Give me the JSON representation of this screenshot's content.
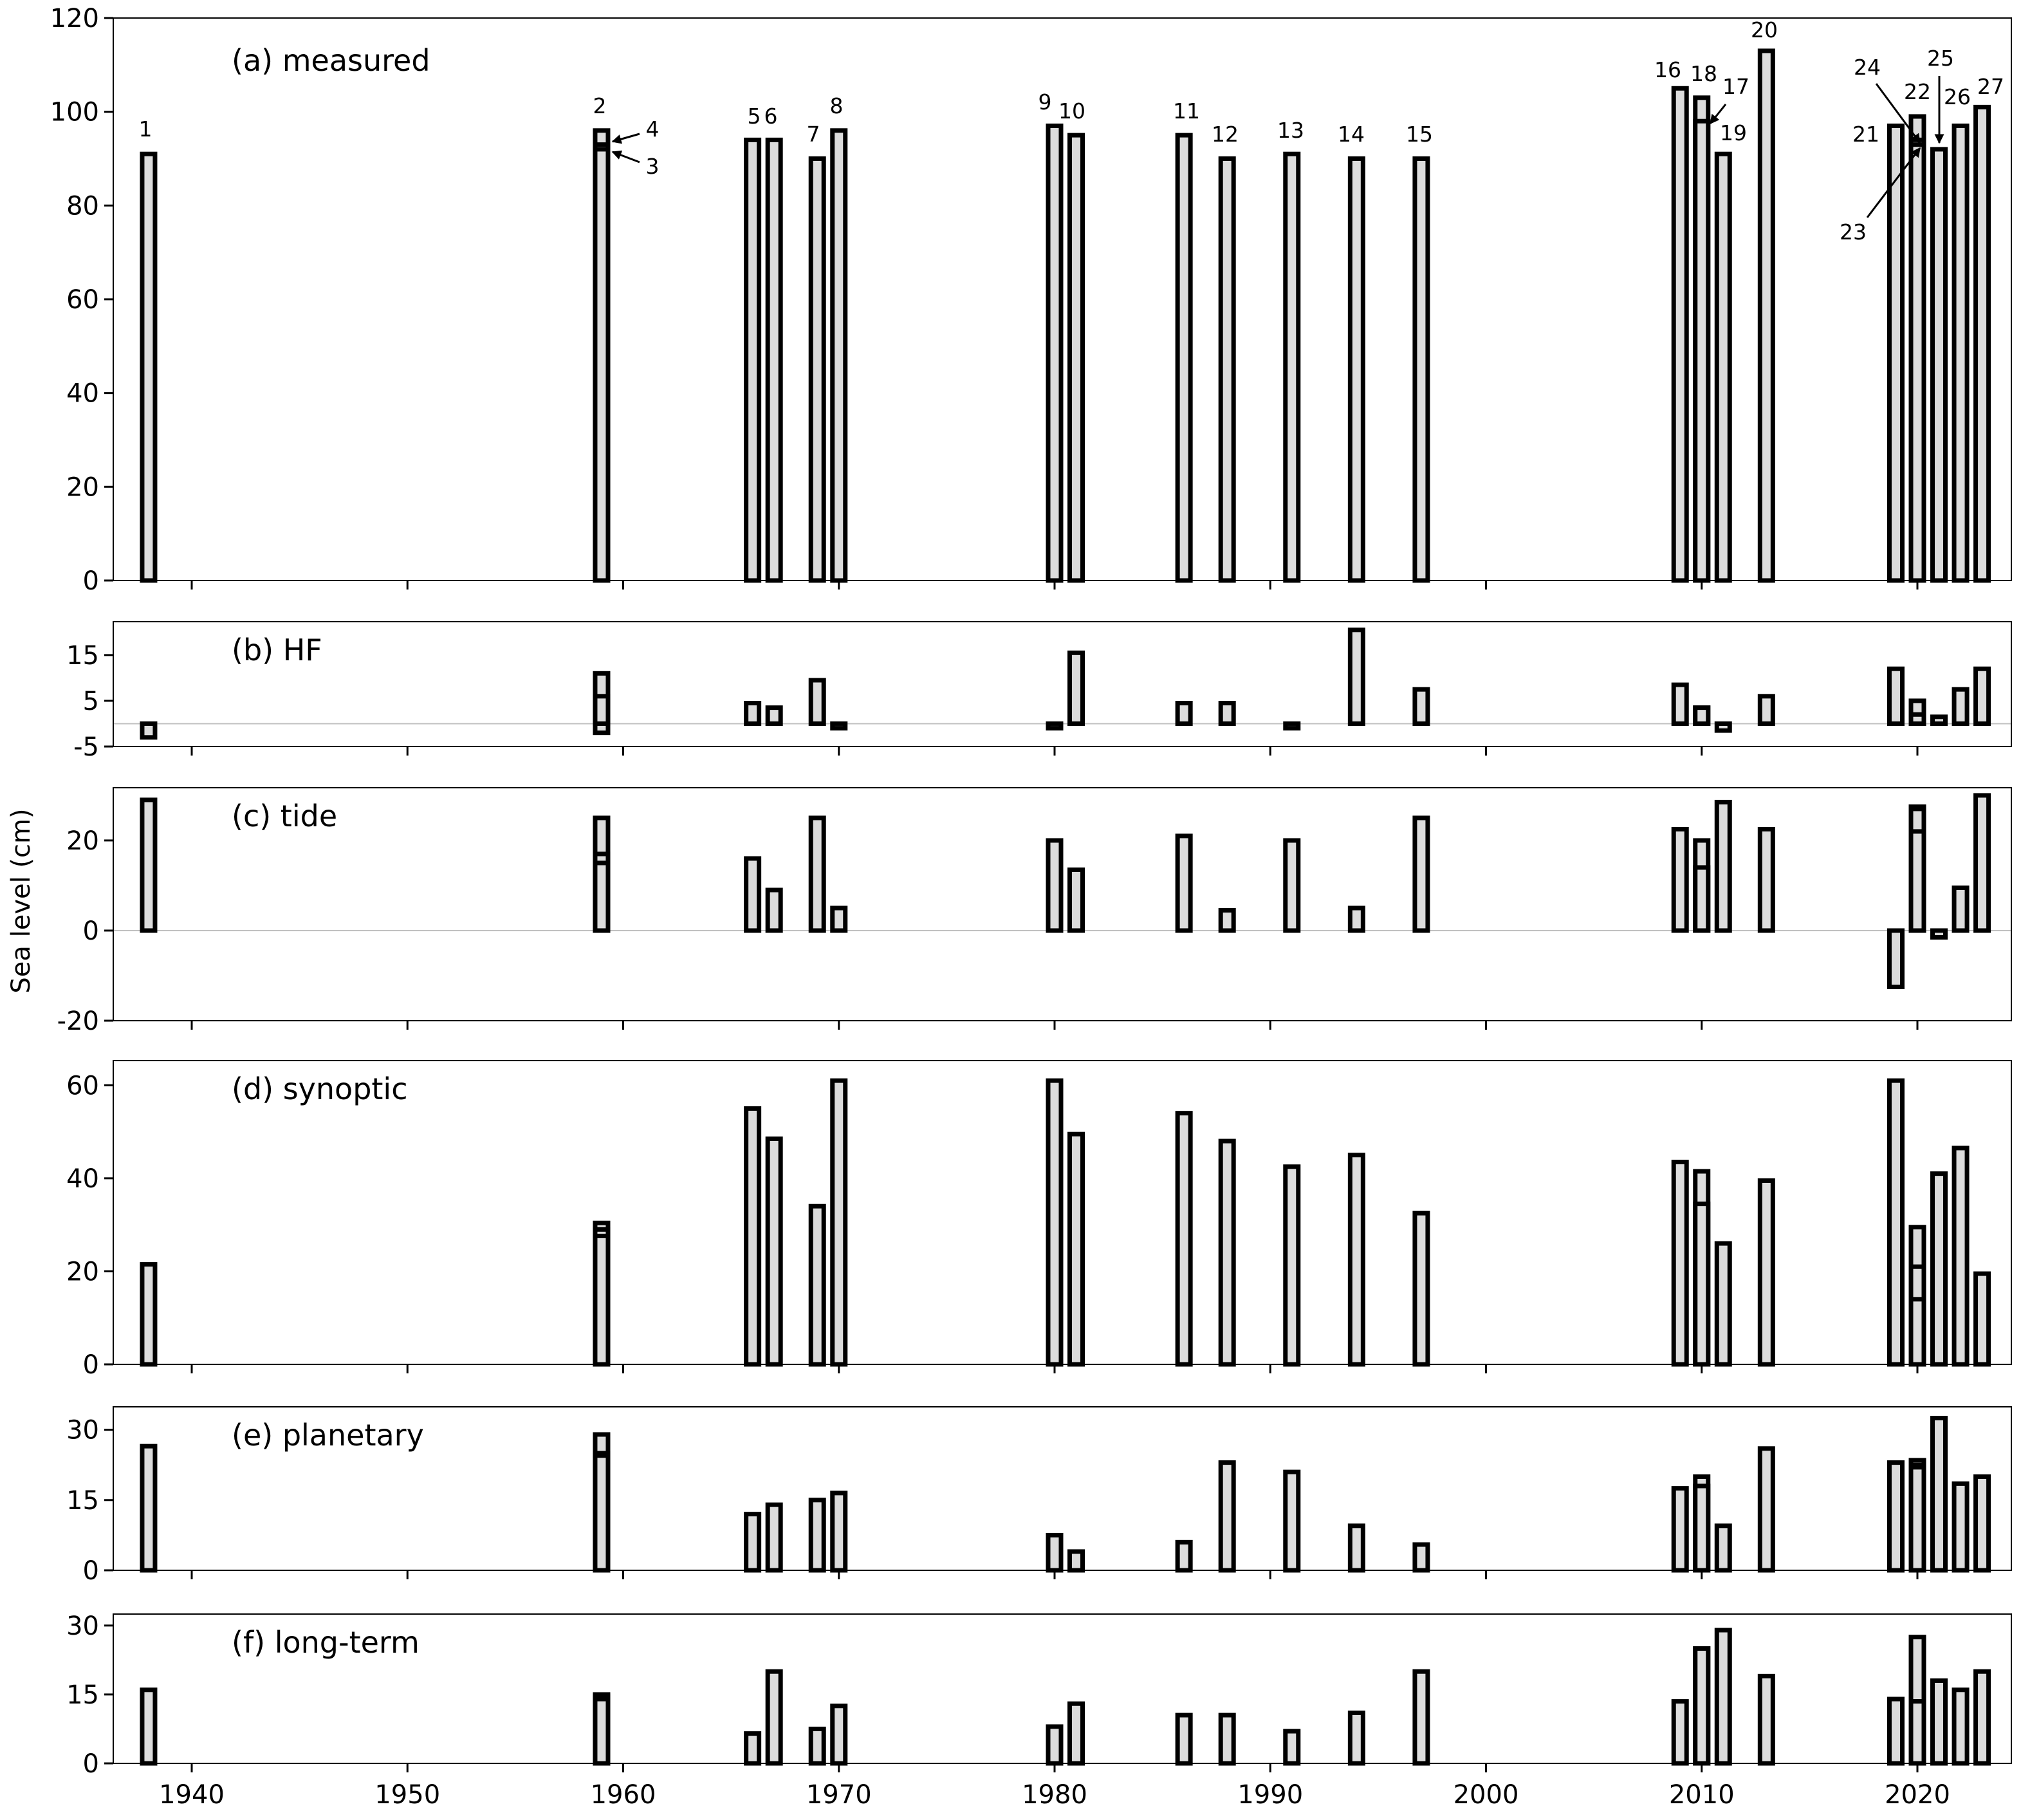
{
  "chart_data": {
    "type": "bar",
    "ylabel": "Sea level (cm)",
    "xlabel": "",
    "xlim": [
      1936.5,
      2024.5
    ],
    "xticks": [
      1940,
      1950,
      1960,
      1970,
      1980,
      1990,
      2000,
      2010,
      2020
    ],
    "bar_fill": "#dcdcdc",
    "bar_edge": "#000000",
    "zero_line_color": "#c0c0c0",
    "events": [
      {
        "id": "1",
        "year": 1938
      },
      {
        "id": "2",
        "year": 1959
      },
      {
        "id": "3",
        "year": 1959
      },
      {
        "id": "4",
        "year": 1959
      },
      {
        "id": "5",
        "year": 1966
      },
      {
        "id": "6",
        "year": 1967
      },
      {
        "id": "7",
        "year": 1969
      },
      {
        "id": "8",
        "year": 1970
      },
      {
        "id": "9",
        "year": 1980
      },
      {
        "id": "10",
        "year": 1981
      },
      {
        "id": "11",
        "year": 1986
      },
      {
        "id": "12",
        "year": 1988
      },
      {
        "id": "13",
        "year": 1991
      },
      {
        "id": "14",
        "year": 1994
      },
      {
        "id": "15",
        "year": 1997
      },
      {
        "id": "16",
        "year": 2009
      },
      {
        "id": "17",
        "year": 2010
      },
      {
        "id": "18",
        "year": 2010
      },
      {
        "id": "19",
        "year": 2011
      },
      {
        "id": "20",
        "year": 2013
      },
      {
        "id": "21",
        "year": 2019
      },
      {
        "id": "22",
        "year": 2020
      },
      {
        "id": "23",
        "year": 2020
      },
      {
        "id": "24",
        "year": 2020
      },
      {
        "id": "25",
        "year": 2021
      },
      {
        "id": "26",
        "year": 2022
      },
      {
        "id": "27",
        "year": 2023
      }
    ],
    "panels": [
      {
        "title": "(a) measured",
        "ylim": [
          0,
          120
        ],
        "yticks": [
          0,
          20,
          40,
          60,
          80,
          100,
          120
        ],
        "zero_line": false,
        "values": [
          91,
          96,
          92,
          93,
          94,
          94,
          90,
          96,
          97,
          95,
          95,
          90,
          91,
          90,
          90,
          105,
          98,
          103,
          91,
          113,
          97,
          99,
          93,
          94,
          92,
          97,
          101
        ]
      },
      {
        "title": "(b) HF",
        "ylim": [
          -5,
          22.3
        ],
        "yticks": [
          -5,
          5,
          15
        ],
        "zero_line": true,
        "values": [
          -3,
          11,
          -2,
          6,
          4.5,
          3.5,
          9.5,
          -1,
          -1,
          15.5,
          4.5,
          4.5,
          -1,
          20.5,
          7.5,
          8.5,
          3.5,
          3.5,
          -1.5,
          6,
          12,
          5,
          2,
          2,
          1.5,
          7.5,
          12
        ]
      },
      {
        "title": "(c) tide",
        "ylim": [
          -20,
          31.7
        ],
        "yticks": [
          -20,
          0,
          20
        ],
        "zero_line": true,
        "values": [
          29,
          25,
          17,
          15,
          16,
          9,
          25,
          5,
          20,
          13.5,
          21,
          4.5,
          20,
          5,
          25,
          22.5,
          14,
          20,
          28.5,
          22.5,
          -12.5,
          27,
          27.5,
          22,
          -1.5,
          9.5,
          30
        ]
      },
      {
        "title": "(d) synoptic",
        "ylim": [
          0,
          65.3
        ],
        "yticks": [
          0,
          20,
          40,
          60
        ],
        "zero_line": false,
        "values": [
          21.5,
          30.4,
          29,
          27.6,
          55,
          48.5,
          34,
          61,
          61,
          49.5,
          54,
          48,
          42.5,
          45,
          32.5,
          43.5,
          34.5,
          41.5,
          26,
          39.5,
          61,
          29.5,
          21,
          14,
          41,
          46.5,
          19.5
        ]
      },
      {
        "title": "(e) planetary",
        "ylim": [
          0,
          34.9
        ],
        "yticks": [
          0,
          15,
          30
        ],
        "zero_line": false,
        "values": [
          26.5,
          29,
          24.5,
          25,
          12,
          14,
          15,
          16.5,
          7.5,
          4,
          6,
          23,
          21,
          9.5,
          5.5,
          17.5,
          18,
          20,
          9.5,
          26,
          23,
          23.5,
          22,
          22.5,
          32.5,
          18.5,
          20
        ]
      },
      {
        "title": "(f) long-term",
        "ylim": [
          0,
          32.5
        ],
        "yticks": [
          0,
          15,
          30
        ],
        "zero_line": false,
        "values": [
          16,
          15,
          14.5,
          14,
          6.5,
          20,
          7.5,
          12.5,
          8,
          13,
          10.5,
          10.5,
          7,
          11,
          20,
          13.5,
          25,
          25,
          29,
          19,
          14,
          27.5,
          13.5,
          13.5,
          18,
          16,
          20
        ]
      }
    ]
  }
}
